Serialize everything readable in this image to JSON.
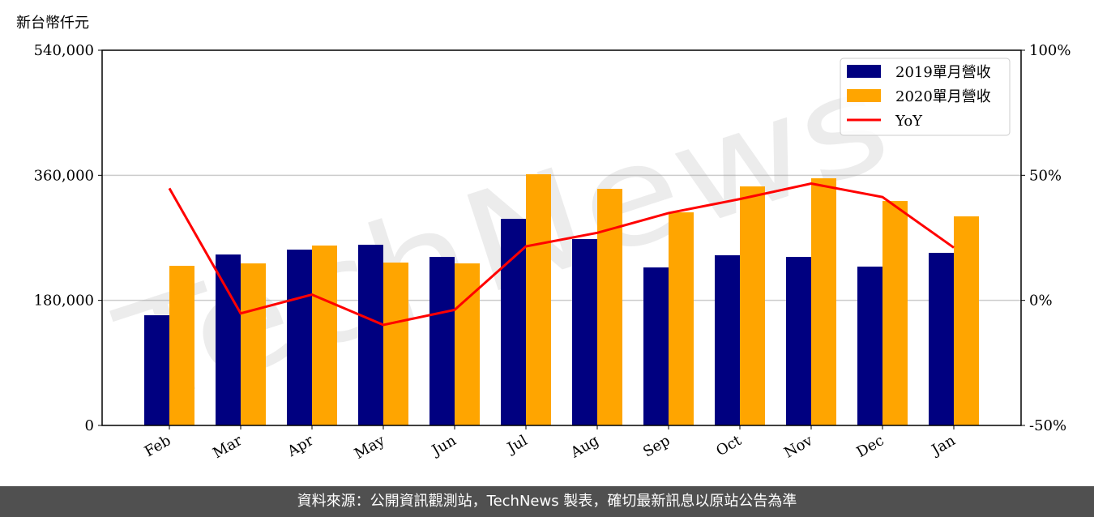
{
  "chart_data": {
    "type": "bar",
    "unit_label": "新台幣仟元",
    "categories": [
      "Feb",
      "Mar",
      "Apr",
      "May",
      "Jun",
      "Jul",
      "Aug",
      "Sep",
      "Oct",
      "Nov",
      "Dec",
      "Jan"
    ],
    "series": [
      {
        "name": "2019單月營收",
        "type": "bar",
        "axis": "left",
        "color": "#000080",
        "values": [
          158600,
          246000,
          253000,
          260000,
          242500,
          297300,
          268200,
          227400,
          244900,
          242500,
          228600,
          248400
        ]
      },
      {
        "name": "2020單月營收",
        "type": "bar",
        "axis": "left",
        "color": "#FFA500",
        "values": [
          229700,
          233200,
          258900,
          234400,
          233200,
          361500,
          340500,
          306700,
          344000,
          355700,
          323000,
          300900
        ]
      },
      {
        "name": "YoY",
        "type": "line",
        "axis": "right",
        "color": "#FF0000",
        "values": [
          44.8,
          -5.2,
          2.3,
          -9.8,
          -3.8,
          21.6,
          27.0,
          34.9,
          40.5,
          46.7,
          41.3,
          21.1
        ]
      }
    ],
    "ylim": [
      0,
      540000
    ],
    "yticks": [
      "0",
      "180,000",
      "360,000",
      "540,000"
    ],
    "y2lim": [
      -50,
      100
    ],
    "y2ticks": [
      "-50%",
      "0%",
      "50%",
      "100%"
    ],
    "grid": "horizontal",
    "legend": "top-right"
  },
  "watermark": "TechNews",
  "footer": "資料來源：公開資訊觀測站，TechNews 製表，確切最新訊息以原站公告為準"
}
